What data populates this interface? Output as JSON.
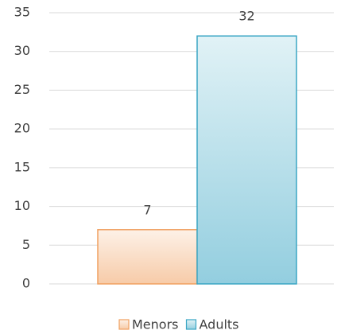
{
  "chart_data": {
    "type": "bar",
    "categories": [
      null
    ],
    "series": [
      {
        "name": "Menors",
        "color": "#f0a060",
        "values": [
          7
        ]
      },
      {
        "name": "Adults",
        "color": "#3aa6c4",
        "values": [
          32
        ]
      }
    ],
    "ylim": [
      0,
      35
    ],
    "yticks": [
      0,
      5,
      10,
      15,
      20,
      25,
      30,
      35
    ],
    "grid": true,
    "legend": "bottom"
  }
}
